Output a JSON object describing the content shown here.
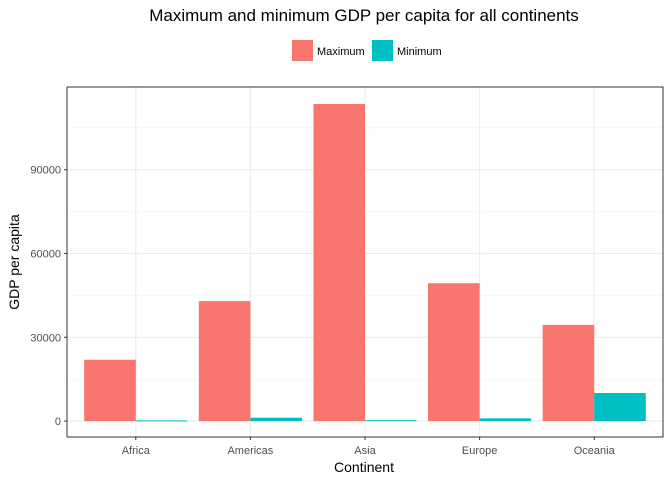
{
  "chart_data": {
    "type": "bar",
    "title": "Maximum and minimum GDP per capita for all continents",
    "xlabel": "Continent",
    "ylabel": "GDP per capita",
    "categories": [
      "Africa",
      "Americas",
      "Asia",
      "Europe",
      "Oceania"
    ],
    "series": [
      {
        "name": "Maximum",
        "color": "#F8766D",
        "values": [
          21951,
          42952,
          113523,
          49357,
          34435
        ]
      },
      {
        "name": "Minimum",
        "color": "#00BFC4",
        "values": [
          241,
          1202,
          331,
          974,
          10040
        ]
      }
    ],
    "yticks": [
      0,
      30000,
      60000,
      90000
    ],
    "ylim": [
      -5700,
      119600
    ],
    "grid": true,
    "legend_position": "top"
  }
}
